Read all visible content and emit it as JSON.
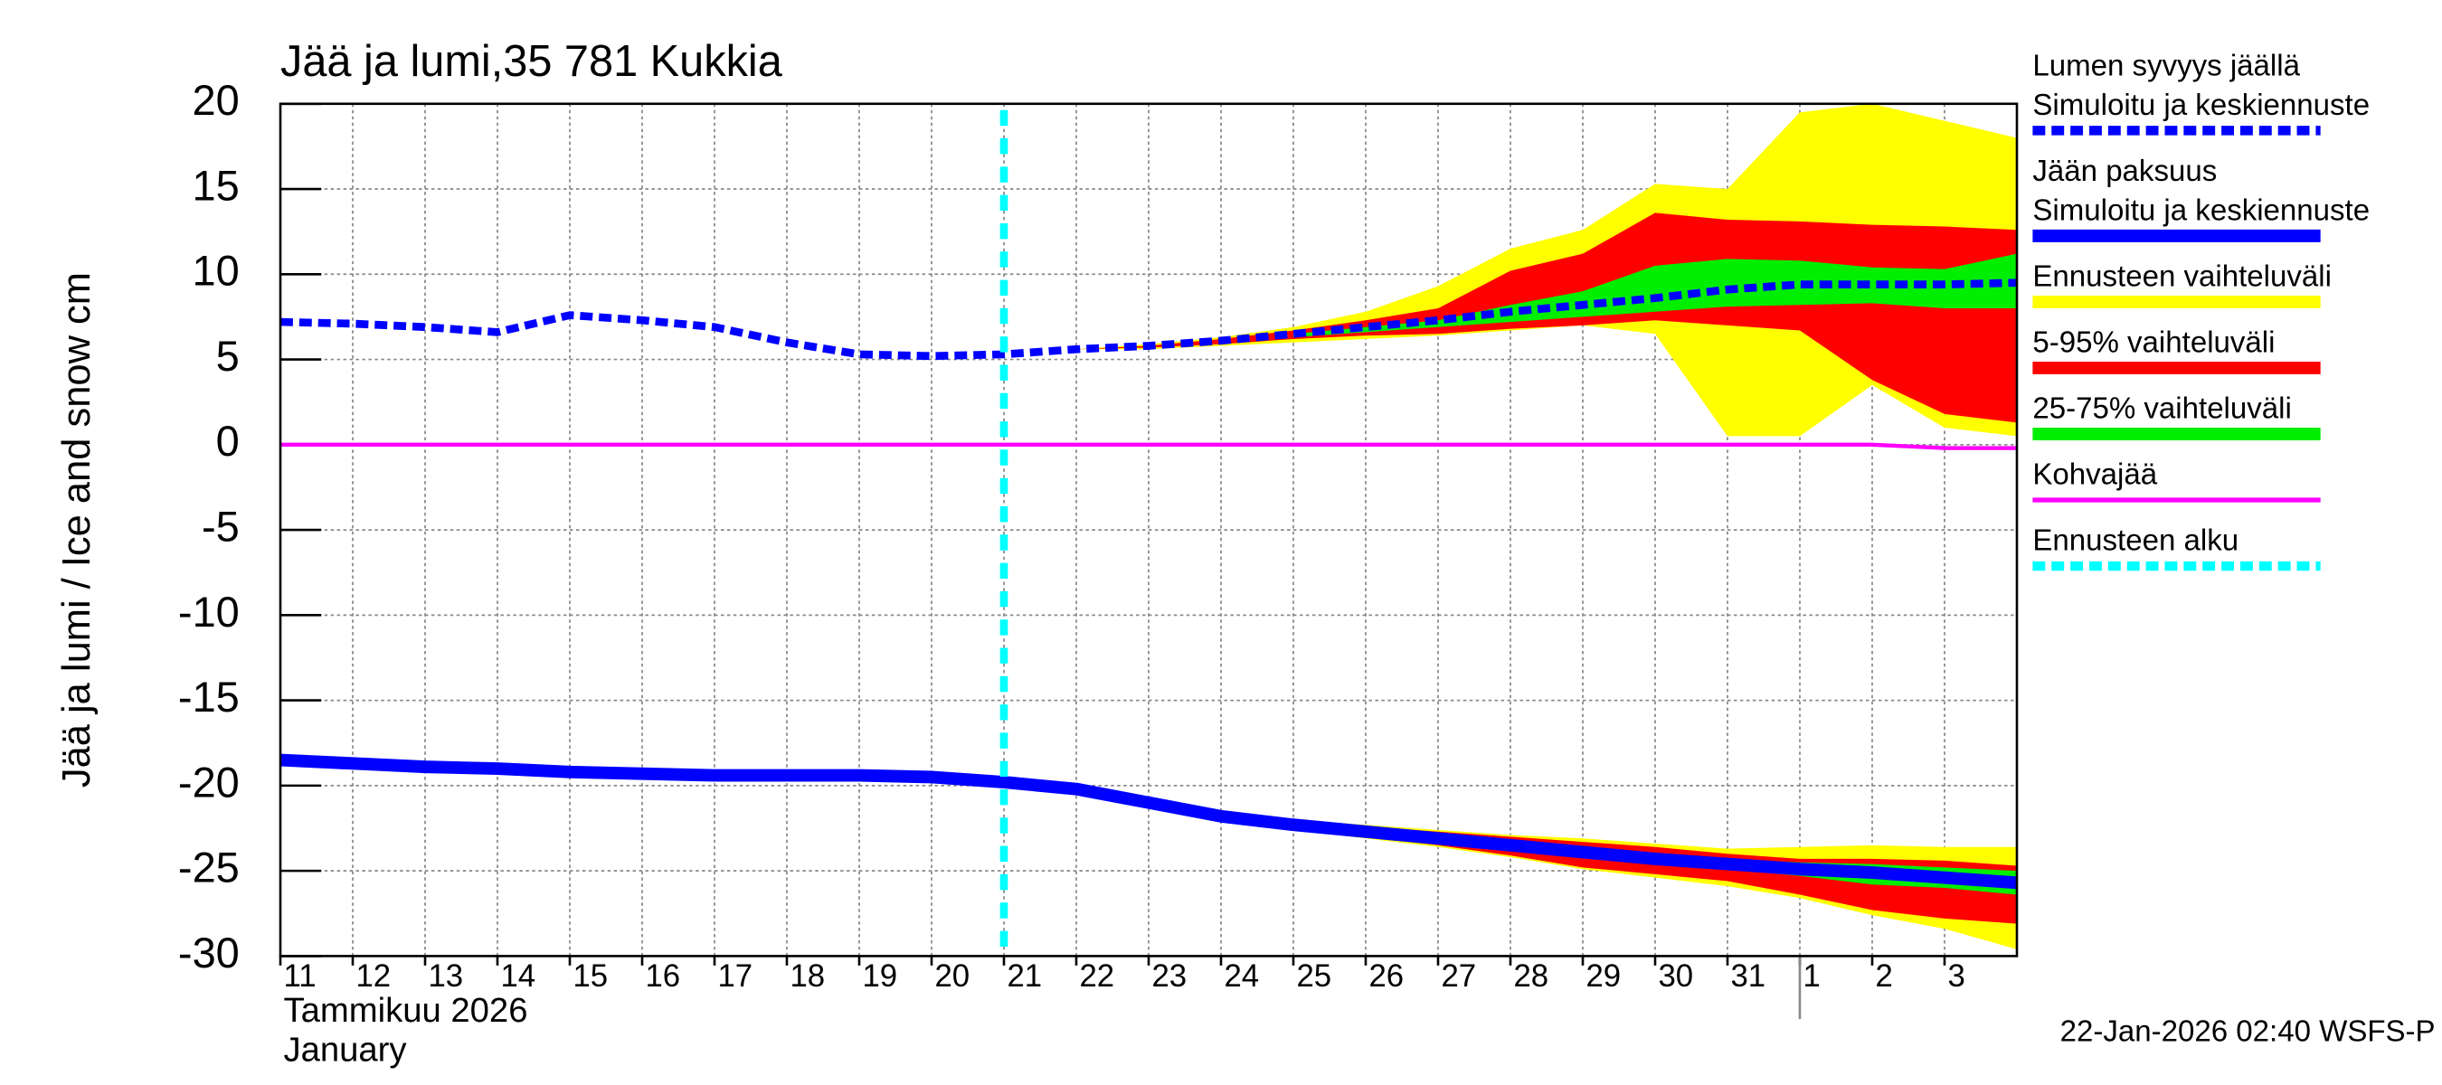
{
  "chart_data": {
    "type": "line",
    "title": "Jää ja lumi,35 781 Kukkia",
    "ylabel": "Jää ja lumi / Ice and snow    cm",
    "xlabel_lines": [
      "Tammikuu  2026",
      "January"
    ],
    "footer": "22-Jan-2026 02:40 WSFS-P",
    "xlim": [
      0,
      24
    ],
    "xticks": [
      {
        "value": 0,
        "label": "11"
      },
      {
        "value": 1,
        "label": "12"
      },
      {
        "value": 2,
        "label": "13"
      },
      {
        "value": 3,
        "label": "14"
      },
      {
        "value": 4,
        "label": "15"
      },
      {
        "value": 5,
        "label": "16"
      },
      {
        "value": 6,
        "label": "17"
      },
      {
        "value": 7,
        "label": "18"
      },
      {
        "value": 8,
        "label": "19"
      },
      {
        "value": 9,
        "label": "20"
      },
      {
        "value": 10,
        "label": "21"
      },
      {
        "value": 11,
        "label": "22"
      },
      {
        "value": 12,
        "label": "23"
      },
      {
        "value": 13,
        "label": "24"
      },
      {
        "value": 14,
        "label": "25"
      },
      {
        "value": 15,
        "label": "26"
      },
      {
        "value": 16,
        "label": "27"
      },
      {
        "value": 17,
        "label": "28"
      },
      {
        "value": 18,
        "label": "29"
      },
      {
        "value": 19,
        "label": "30"
      },
      {
        "value": 20,
        "label": "31"
      },
      {
        "value": 21,
        "label": "1"
      },
      {
        "value": 22,
        "label": "2"
      },
      {
        "value": 23,
        "label": "3"
      }
    ],
    "month_boundary": 21,
    "ylim": [
      -30,
      20
    ],
    "yticks": [
      20,
      15,
      10,
      5,
      0,
      -5,
      -10,
      -15,
      -20,
      -25,
      -30
    ],
    "grid": true,
    "forecast_start": {
      "x": 10,
      "color": "#00ffff"
    },
    "bands": [
      {
        "color": "#ffff00",
        "x": [
          10,
          11,
          12,
          13,
          14,
          15,
          16,
          17,
          18,
          19,
          20,
          21,
          22,
          23,
          24
        ],
        "upper": [
          5.3,
          5.6,
          5.9,
          6.3,
          6.9,
          7.8,
          9.3,
          11.5,
          12.6,
          15.3,
          15.0,
          19.5,
          20,
          19,
          18
        ],
        "lower": [
          5.3,
          5.6,
          5.6,
          5.8,
          6.0,
          6.2,
          6.4,
          6.7,
          7.0,
          6.5,
          0.5,
          0.5,
          3.5,
          1.0,
          0.5
        ]
      },
      {
        "color": "#ff0000",
        "x": [
          10,
          11,
          12,
          13,
          14,
          15,
          16,
          17,
          18,
          19,
          20,
          21,
          22,
          23,
          24
        ],
        "upper": [
          5.3,
          5.6,
          5.8,
          6.2,
          6.7,
          7.3,
          8.0,
          10.2,
          11.2,
          13.6,
          13.2,
          13.1,
          12.9,
          12.8,
          12.6
        ],
        "lower": [
          5.3,
          5.6,
          5.7,
          5.9,
          6.2,
          6.4,
          6.5,
          6.8,
          7.0,
          7.3,
          7.0,
          6.7,
          3.8,
          1.8,
          1.3
        ]
      },
      {
        "color": "#00ee00",
        "x": [
          14,
          15,
          16,
          17,
          18,
          19,
          20,
          21,
          22,
          23,
          24
        ],
        "upper": [
          6.5,
          6.9,
          7.3,
          8.2,
          9.0,
          10.5,
          10.9,
          10.8,
          10.4,
          10.3,
          11.2
        ],
        "lower": [
          6.3,
          6.6,
          6.9,
          7.2,
          7.5,
          7.8,
          8.1,
          8.2,
          8.3,
          8.0,
          8.0
        ]
      },
      {
        "color": "#ffff00",
        "x": [
          13,
          14,
          15,
          16,
          17,
          18,
          19,
          20,
          21,
          22,
          23,
          24
        ],
        "upper": [
          -21.7,
          -22.0,
          -22.3,
          -22.6,
          -22.9,
          -23.1,
          -23.4,
          -23.7,
          -23.6,
          -23.5,
          -23.6,
          -23.6
        ],
        "lower": [
          -21.9,
          -22.6,
          -23.1,
          -23.6,
          -24.2,
          -24.9,
          -25.4,
          -25.9,
          -26.6,
          -27.6,
          -28.4,
          -29.6
        ]
      },
      {
        "color": "#ff0000",
        "x": [
          14,
          15,
          16,
          17,
          18,
          19,
          20,
          21,
          22,
          23,
          24
        ],
        "upper": [
          -22.1,
          -22.4,
          -22.7,
          -23.0,
          -23.3,
          -23.6,
          -24.0,
          -24.3,
          -24.3,
          -24.4,
          -24.7
        ],
        "lower": [
          -22.5,
          -23.0,
          -23.5,
          -24.1,
          -24.8,
          -25.2,
          -25.6,
          -26.4,
          -27.3,
          -27.8,
          -28.1
        ]
      },
      {
        "color": "#00ee00",
        "x": [
          14,
          15,
          16,
          17,
          18,
          19,
          20,
          21,
          22,
          23,
          24
        ],
        "upper": [
          -22.2,
          -22.6,
          -22.9,
          -23.3,
          -23.7,
          -24.1,
          -24.3,
          -24.5,
          -24.6,
          -24.8,
          -25.0
        ],
        "lower": [
          -22.4,
          -22.8,
          -23.3,
          -23.7,
          -24.1,
          -24.5,
          -24.9,
          -25.3,
          -25.8,
          -26.0,
          -26.4
        ]
      }
    ],
    "series": [
      {
        "color": "#ff00ff",
        "style": "solid",
        "x": [
          0,
          1,
          2,
          3,
          4,
          5,
          6,
          7,
          8,
          9,
          10,
          11,
          12,
          13,
          14,
          15,
          16,
          17,
          18,
          19,
          20,
          21,
          22,
          23,
          24
        ],
        "values": [
          0,
          0,
          0,
          0,
          0,
          0,
          0,
          0,
          0,
          0,
          0,
          0,
          0,
          0,
          0,
          0,
          0,
          0,
          0,
          0,
          0,
          0,
          0,
          -0.2,
          -0.2
        ]
      },
      {
        "color": "#0000ff",
        "style": "solid",
        "x": [
          0,
          1,
          2,
          3,
          4,
          5,
          6,
          7,
          8,
          9,
          10,
          11,
          12,
          13,
          14,
          15,
          16,
          17,
          18,
          19,
          20,
          21,
          22,
          23,
          24
        ],
        "values": [
          -18.5,
          -18.7,
          -18.9,
          -19.0,
          -19.2,
          -19.3,
          -19.4,
          -19.4,
          -19.4,
          -19.5,
          -19.8,
          -20.2,
          -21.0,
          -21.8,
          -22.3,
          -22.7,
          -23.1,
          -23.5,
          -23.9,
          -24.3,
          -24.6,
          -24.9,
          -25.1,
          -25.4,
          -25.7
        ]
      },
      {
        "color": "#0000ff",
        "style": "dashed",
        "x": [
          0,
          1,
          2,
          3,
          4,
          5,
          6,
          7,
          8,
          9,
          10,
          11,
          12,
          13,
          14,
          15,
          16,
          17,
          18,
          19,
          20,
          21,
          22,
          23,
          24
        ],
        "values": [
          7.2,
          7.1,
          6.9,
          6.6,
          7.6,
          7.3,
          6.9,
          6.0,
          5.3,
          5.2,
          5.3,
          5.6,
          5.8,
          6.1,
          6.5,
          6.9,
          7.3,
          7.8,
          8.2,
          8.6,
          9.1,
          9.4,
          9.4,
          9.4,
          9.5
        ]
      }
    ],
    "legend": [
      {
        "lines": [
          "Lumen syvyys jäällä",
          "Simuloitu ja keskiennuste"
        ],
        "color": "#0000ff",
        "style": "dashed"
      },
      {
        "lines": [
          "Jään paksuus",
          "Simuloitu ja keskiennuste"
        ],
        "color": "#0000ff",
        "style": "solid"
      },
      {
        "lines": [
          "Ennusteen vaihteluväli"
        ],
        "color": "#ffff00",
        "style": "solid"
      },
      {
        "lines": [
          "5-95% vaihteluväli"
        ],
        "color": "#ff0000",
        "style": "solid"
      },
      {
        "lines": [
          "25-75% vaihteluväli"
        ],
        "color": "#00ee00",
        "style": "solid"
      },
      {
        "lines": [
          "Kohvajää"
        ],
        "color": "#ff00ff",
        "style": "thin"
      },
      {
        "lines": [
          "Ennusteen alku"
        ],
        "color": "#00ffff",
        "style": "dashed"
      }
    ]
  }
}
